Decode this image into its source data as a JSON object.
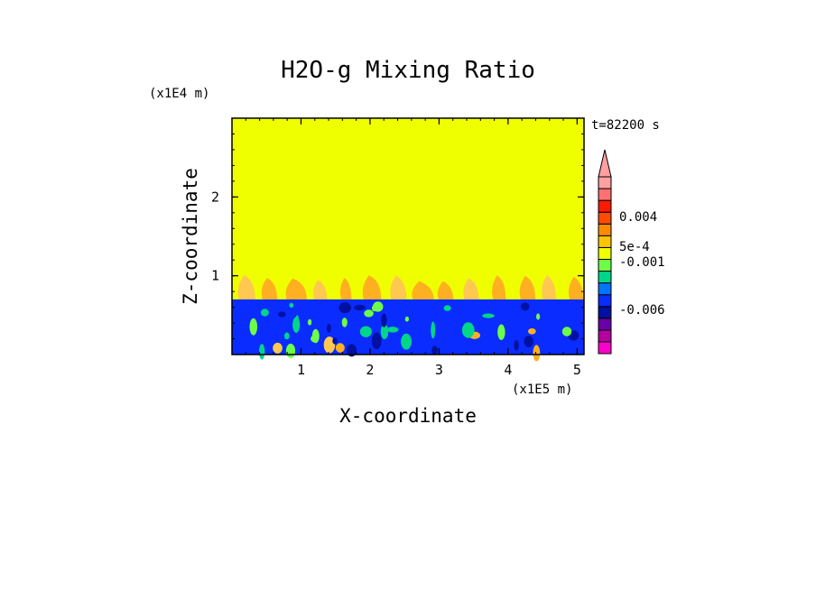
{
  "chart_data": {
    "type": "heatmap",
    "title": "H2O-g Mixing Ratio",
    "xlabel": "X-coordinate",
    "ylabel": "Z-coordinate",
    "x_scale_label": "(x1E5 m)",
    "y_scale_label": "(x1E4 m)",
    "time_label": "t=82200 s",
    "xlim": [
      0,
      5.1
    ],
    "ylim": [
      0,
      3.0
    ],
    "x_ticks": [
      "1",
      "2",
      "3",
      "4",
      "5"
    ],
    "y_ticks": [
      "1",
      "2"
    ],
    "colorbar_labels": [
      "0.004",
      "5e-4",
      "-0.001",
      "-0.006"
    ],
    "colorbar_colors": [
      "#ff00cc",
      "#b3009f",
      "#6b00a8",
      "#0010a0",
      "#0a2cff",
      "#0074ff",
      "#00d58a",
      "#6cff48",
      "#f0ff00",
      "#ffc400",
      "#ff8c00",
      "#ff4b00",
      "#ff1a00",
      "#ff7070",
      "#ffa0a0"
    ],
    "field": {
      "background": "#f0ff00",
      "lower_layer_top": 0.7,
      "plume_top": 1.02,
      "colors": {
        "yellow": "#f0ff00",
        "orange": "#ffb020",
        "light_orange": "#ffc850",
        "blue": "#0a2cff",
        "dark_blue": "#0010a0",
        "green": "#00d58a",
        "light_green": "#6cff48"
      }
    }
  }
}
